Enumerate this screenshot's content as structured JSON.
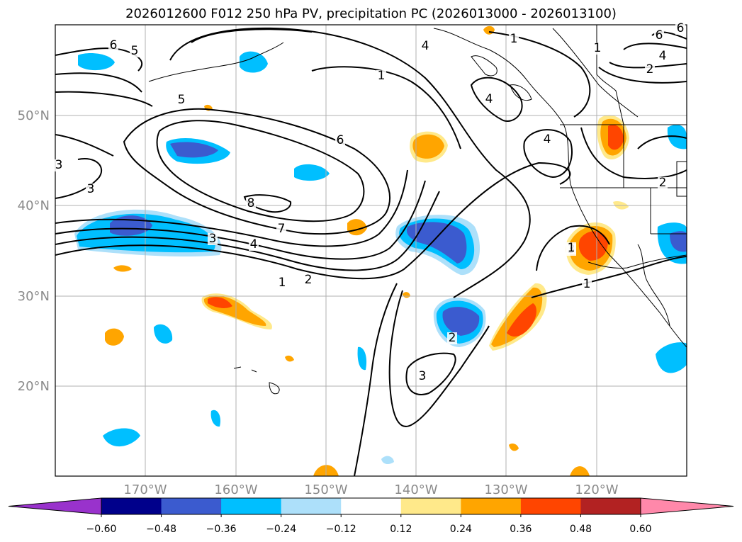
{
  "title": "2026012600 F012 250 hPa PV, precipitation PC (2026013000 - 2026013100)",
  "latitude_labels": [
    "50°N",
    "40°N",
    "30°N",
    "20°N"
  ],
  "longitude_labels": [
    "170°W",
    "160°W",
    "150°W",
    "140°W",
    "130°W",
    "120°W"
  ],
  "colorbar": {
    "ticks": [
      "−0.60",
      "−0.48",
      "−0.36",
      "−0.24",
      "−0.12",
      "0.12",
      "0.24",
      "0.36",
      "0.48",
      "0.60"
    ],
    "colors": [
      "#9932CC",
      "#00008B",
      "#3B5BCF",
      "#00BFFF",
      "#ADE0FA",
      "#FFFFFF",
      "#FFE98A",
      "#FFA500",
      "#FF4500",
      "#B22222",
      "#FF88AA"
    ]
  },
  "pv_contour_labels": [
    "1",
    "2",
    "3",
    "4",
    "5",
    "6",
    "7",
    "8",
    "1",
    "4",
    "1",
    "4",
    "6",
    "5",
    "6",
    "1",
    "2",
    "3",
    "4",
    "1",
    "2",
    "3",
    "3",
    "1",
    "2",
    "3",
    "4",
    "6"
  ]
}
